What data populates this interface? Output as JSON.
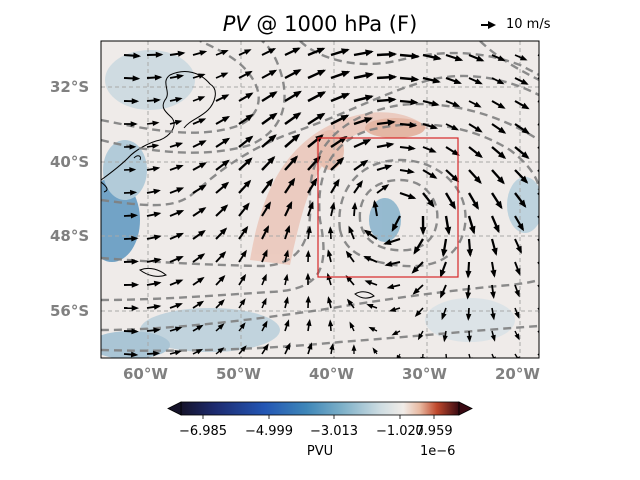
{
  "title": {
    "var": "PV",
    "rest": " @ 1000 hPa (F)"
  },
  "quiver_key": {
    "label": "10 m/s"
  },
  "map": {
    "lat_labels": [
      "32°S",
      "40°S",
      "48°S",
      "56°S"
    ],
    "lon_labels": [
      "60°W",
      "50°W",
      "40°W",
      "30°W",
      "20°W"
    ],
    "gridlines": true,
    "region_box": {
      "lon": [
        -41,
        -26
      ],
      "lat": [
        -39,
        -54
      ],
      "color": "#d62728"
    }
  },
  "colorbar": {
    "colormap": "blue-white-red (diverging)",
    "ticks": [
      "−6.985",
      "−4.999",
      "−3.013",
      "−1.027",
      "0.959"
    ],
    "label": "PVU",
    "exponent": "1e−6"
  }
}
